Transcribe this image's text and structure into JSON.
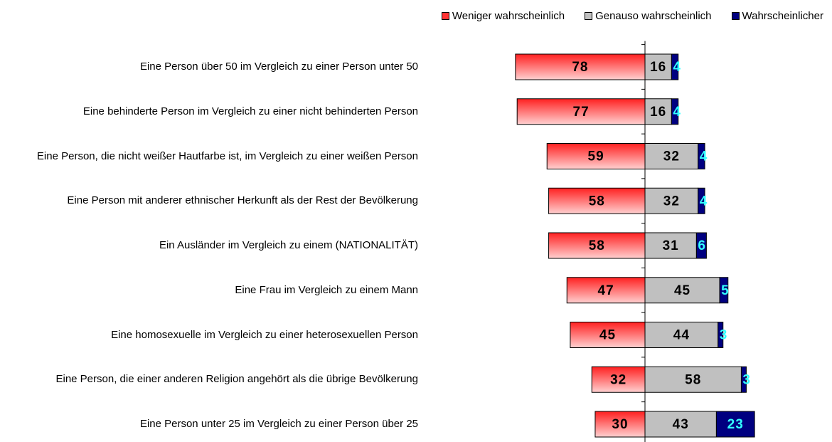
{
  "chart_data": {
    "type": "diverging_bar",
    "categories": [
      "Eine Person über 50 im Vergleich zu einer Person unter 50",
      "Eine behinderte Person im Vergleich zu einer nicht behinderten Person",
      "Eine Person, die nicht weißer Hautfarbe ist, im Vergleich zu einer weißen Person",
      "Eine Person mit anderer ethnischer Herkunft als der Rest der Bevölkerung",
      "Ein Ausländer im Vergleich zu einem (NATIONALITÄT)",
      "Eine Frau im Vergleich zu einem Mann",
      "Eine homosexuelle im Vergleich zu einer heterosexuellen Person",
      "Eine Person, die einer anderen Religion angehört als die übrige Bevölkerung",
      "Eine Person unter 25 im Vergleich zu einer Person über 25"
    ],
    "series": [
      {
        "name": "Weniger wahrscheinlich",
        "color": "#ff3333",
        "values": [
          78,
          77,
          59,
          58,
          58,
          47,
          45,
          32,
          30
        ]
      },
      {
        "name": "Genauso wahrscheinlich",
        "color": "#c0c0c0",
        "values": [
          16,
          16,
          32,
          32,
          31,
          45,
          44,
          58,
          43
        ]
      },
      {
        "name": "Wahrscheinlicher",
        "color": "#000080",
        "values": [
          4,
          4,
          4,
          4,
          6,
          5,
          3,
          3,
          23
        ]
      }
    ]
  }
}
